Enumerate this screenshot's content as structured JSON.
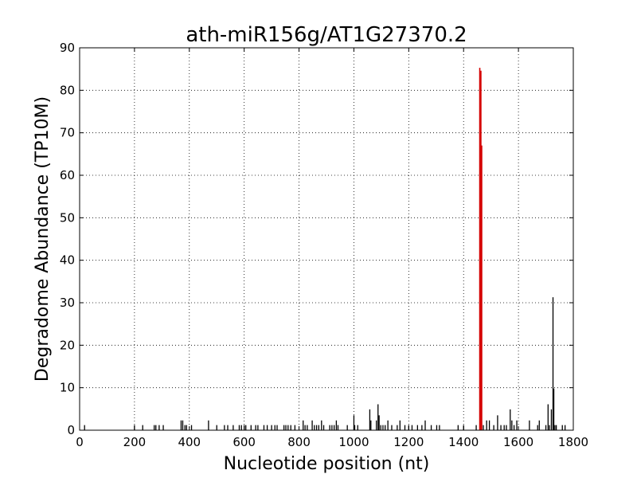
{
  "chart_data": {
    "type": "bar",
    "title": "ath-miR156g/AT1G27370.2",
    "xlabel": "Nucleotide position (nt)",
    "ylabel": "Degradome Abundance (TP10M)",
    "xlim": [
      0,
      1800
    ],
    "ylim": [
      0,
      90
    ],
    "xticks": [
      0,
      200,
      400,
      600,
      800,
      1000,
      1200,
      1400,
      1600,
      1800
    ],
    "yticks": [
      0,
      10,
      20,
      30,
      40,
      50,
      60,
      70,
      80,
      90
    ],
    "grid": true,
    "series": [
      {
        "color": "#000000",
        "points": [
          [
            18,
            1.2
          ],
          [
            200,
            1.2
          ],
          [
            230,
            1.2
          ],
          [
            272,
            1.2
          ],
          [
            278,
            1.2
          ],
          [
            290,
            1.2
          ],
          [
            305,
            1.2
          ],
          [
            370,
            2.3
          ],
          [
            376,
            2.3
          ],
          [
            384,
            1.2
          ],
          [
            390,
            1.2
          ],
          [
            408,
            1.2
          ],
          [
            470,
            2.3
          ],
          [
            500,
            1.2
          ],
          [
            528,
            1.2
          ],
          [
            540,
            1.2
          ],
          [
            560,
            1.2
          ],
          [
            582,
            1.2
          ],
          [
            590,
            1.2
          ],
          [
            600,
            1.2
          ],
          [
            606,
            1.2
          ],
          [
            625,
            1.2
          ],
          [
            642,
            1.2
          ],
          [
            650,
            1.2
          ],
          [
            672,
            1.2
          ],
          [
            684,
            1.2
          ],
          [
            700,
            1.2
          ],
          [
            712,
            1.2
          ],
          [
            720,
            1.2
          ],
          [
            745,
            1.2
          ],
          [
            752,
            1.2
          ],
          [
            760,
            1.2
          ],
          [
            770,
            1.2
          ],
          [
            785,
            1.2
          ],
          [
            815,
            2.3
          ],
          [
            822,
            1.2
          ],
          [
            830,
            1.2
          ],
          [
            848,
            2.3
          ],
          [
            856,
            1.2
          ],
          [
            864,
            1.2
          ],
          [
            872,
            1.2
          ],
          [
            882,
            2.3
          ],
          [
            890,
            1.2
          ],
          [
            912,
            1.2
          ],
          [
            920,
            1.2
          ],
          [
            928,
            1.2
          ],
          [
            936,
            2.3
          ],
          [
            942,
            1.2
          ],
          [
            976,
            1.2
          ],
          [
            1000,
            3.5
          ],
          [
            1003,
            1.2
          ],
          [
            1014,
            1.2
          ],
          [
            1058,
            4.9
          ],
          [
            1062,
            2.3
          ],
          [
            1082,
            2.3
          ],
          [
            1088,
            6.1
          ],
          [
            1092,
            3.5
          ],
          [
            1098,
            1.2
          ],
          [
            1106,
            1.2
          ],
          [
            1114,
            1.2
          ],
          [
            1124,
            2.3
          ],
          [
            1138,
            1.2
          ],
          [
            1158,
            1.2
          ],
          [
            1168,
            2.3
          ],
          [
            1186,
            1.2
          ],
          [
            1200,
            1.2
          ],
          [
            1212,
            1.2
          ],
          [
            1232,
            1.2
          ],
          [
            1248,
            1.2
          ],
          [
            1260,
            2.3
          ],
          [
            1282,
            1.2
          ],
          [
            1302,
            1.2
          ],
          [
            1312,
            1.2
          ],
          [
            1380,
            1.2
          ],
          [
            1400,
            1.2
          ],
          [
            1446,
            1.2
          ],
          [
            1464,
            1.2
          ],
          [
            1472,
            1.2
          ],
          [
            1484,
            2.3
          ],
          [
            1494,
            2.3
          ],
          [
            1510,
            1.2
          ],
          [
            1524,
            3.5
          ],
          [
            1536,
            1.2
          ],
          [
            1548,
            1.2
          ],
          [
            1556,
            1.2
          ],
          [
            1570,
            4.9
          ],
          [
            1576,
            2.3
          ],
          [
            1584,
            1.2
          ],
          [
            1594,
            2.3
          ],
          [
            1640,
            2.3
          ],
          [
            1670,
            1.2
          ],
          [
            1676,
            2.3
          ],
          [
            1700,
            1.2
          ],
          [
            1708,
            6.1
          ],
          [
            1713,
            1.2
          ],
          [
            1720,
            4.9
          ],
          [
            1726,
            31.3
          ],
          [
            1729,
            9.8
          ],
          [
            1733,
            1.2
          ],
          [
            1738,
            1.2
          ],
          [
            1760,
            1.2
          ],
          [
            1770,
            1.2
          ]
        ]
      },
      {
        "color": "#d40000",
        "points": [
          [
            1459,
            85.3
          ],
          [
            1463,
            84.6
          ],
          [
            1466,
            67.0
          ]
        ]
      }
    ]
  }
}
